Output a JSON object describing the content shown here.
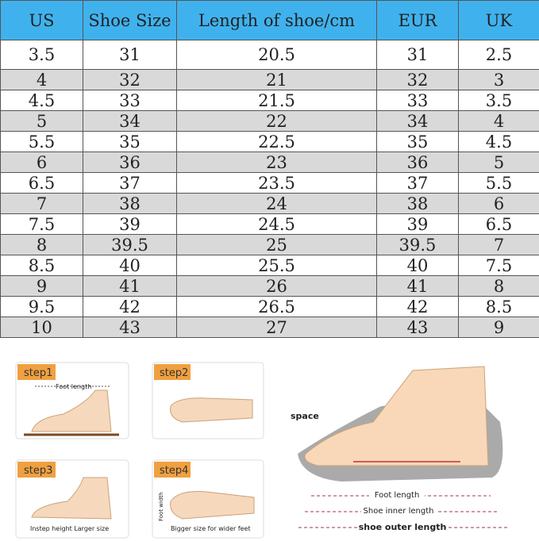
{
  "table": {
    "header": [
      "US",
      "Shoe Size",
      "Length of shoe/cm",
      "EUR",
      "UK"
    ],
    "rows": [
      [
        3.5,
        31,
        20.5,
        31,
        2.5
      ],
      [
        4,
        32,
        21,
        32,
        3
      ],
      [
        4.5,
        33,
        21.5,
        33,
        3.5
      ],
      [
        5,
        34,
        22,
        34,
        4
      ],
      [
        5.5,
        35,
        22.5,
        35,
        4.5
      ],
      [
        6,
        36,
        23,
        36,
        5
      ],
      [
        6.5,
        37,
        23.5,
        37,
        5.5
      ],
      [
        7,
        38,
        24,
        38,
        6
      ],
      [
        7.5,
        39,
        24.5,
        39,
        6.5
      ],
      [
        8,
        39.5,
        25,
        39.5,
        7
      ],
      [
        8.5,
        40,
        25.5,
        40,
        7.5
      ],
      [
        9,
        41,
        26,
        41,
        8
      ],
      [
        9.5,
        42,
        26.5,
        42,
        8.5
      ],
      [
        10,
        43,
        27,
        43,
        9
      ]
    ]
  },
  "steps": [
    {
      "label": "step1",
      "caption": "Foot length"
    },
    {
      "label": "step2"
    },
    {
      "label": "step3",
      "caption": "Instep height Larger size"
    },
    {
      "label": "step4",
      "side": "Foot width",
      "caption": "Bigger size for wider feet"
    }
  ],
  "diagram": {
    "space": "space",
    "lengths": [
      "Foot length",
      "Shoe inner length",
      "shoe outer length"
    ]
  }
}
